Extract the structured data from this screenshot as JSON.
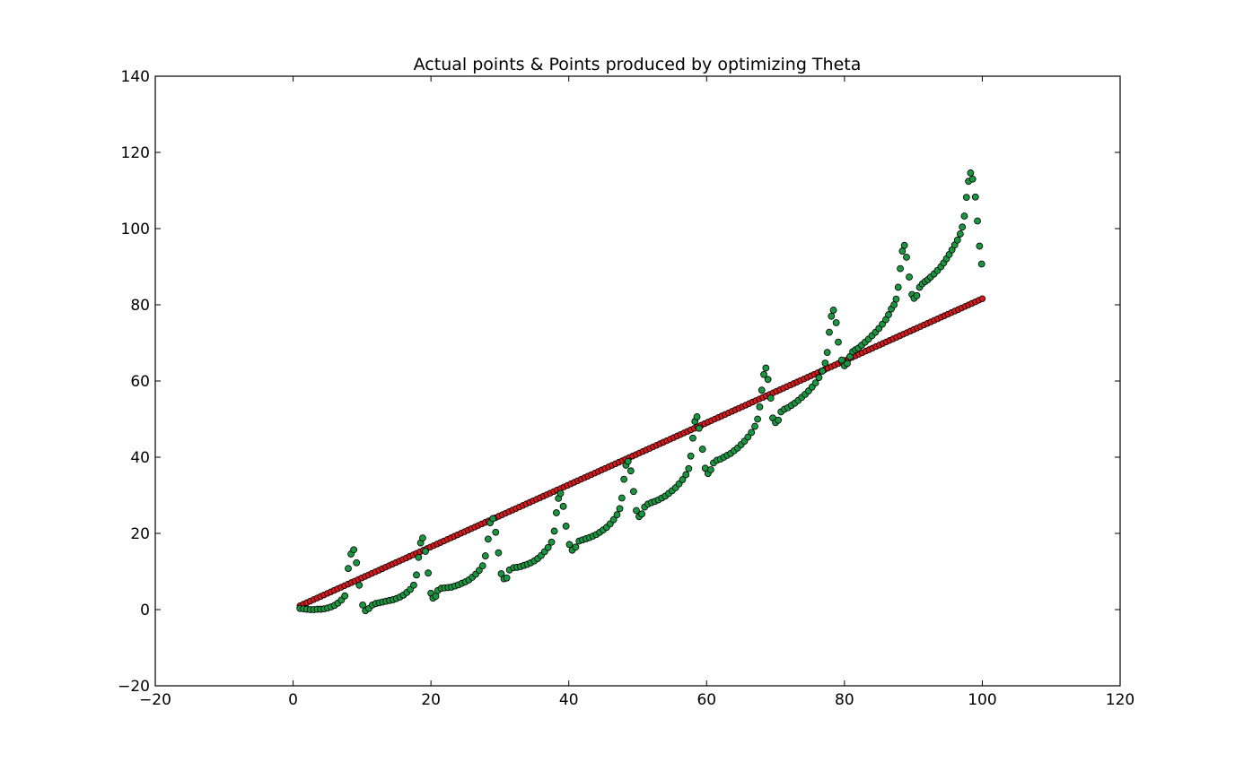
{
  "chart_data": {
    "type": "scatter",
    "title": "Actual points & Points produced by optimizing Theta",
    "xlabel": "",
    "ylabel": "",
    "xlim": [
      -20,
      120
    ],
    "ylim": [
      -20,
      140
    ],
    "xticks": [
      -20,
      0,
      20,
      40,
      60,
      80,
      100,
      120
    ],
    "yticks": [
      -20,
      0,
      20,
      40,
      60,
      80,
      100,
      120,
      140
    ],
    "grid": false,
    "series": [
      {
        "color": "#d7191c",
        "linear_fit": {
          "x_start": 1,
          "x_end": 100,
          "n_points": 200,
          "slope": 0.814,
          "intercept": 0.2
        }
      },
      {
        "color": "#1a9641",
        "points": [
          [
            1,
            0.3
          ],
          [
            1.5,
            0.2
          ],
          [
            2,
            0.1
          ],
          [
            2.5,
            0.0
          ],
          [
            3,
            0.0
          ],
          [
            3.5,
            0.1
          ],
          [
            4,
            0.1
          ],
          [
            4.5,
            0.2
          ],
          [
            5,
            0.4
          ],
          [
            5.5,
            0.7
          ],
          [
            6,
            1.1
          ],
          [
            6.5,
            1.7
          ],
          [
            7,
            2.5
          ],
          [
            7.5,
            3.6
          ],
          [
            8.0,
            10.8
          ],
          [
            8.4,
            14.6
          ],
          [
            8.8,
            15.7
          ],
          [
            9.2,
            12.3
          ],
          [
            9.6,
            6.4
          ],
          [
            10.1,
            1.2
          ],
          [
            10.5,
            -0.3
          ],
          [
            11,
            0.3
          ],
          [
            11.5,
            1.2
          ],
          [
            12,
            1.6
          ],
          [
            12.5,
            1.8
          ],
          [
            13,
            2.0
          ],
          [
            13.5,
            2.2
          ],
          [
            14,
            2.4
          ],
          [
            14.5,
            2.6
          ],
          [
            15,
            2.9
          ],
          [
            15.5,
            3.3
          ],
          [
            16,
            3.8
          ],
          [
            16.5,
            4.5
          ],
          [
            17,
            5.3
          ],
          [
            17.5,
            6.4
          ],
          [
            17.9,
            9.1
          ],
          [
            18.2,
            13.7
          ],
          [
            18.5,
            17.5
          ],
          [
            18.8,
            18.8
          ],
          [
            19.2,
            15.3
          ],
          [
            19.6,
            9.6
          ],
          [
            20,
            4.3
          ],
          [
            20.3,
            3.0
          ],
          [
            20.7,
            3.5
          ],
          [
            21,
            5.0
          ],
          [
            21.5,
            5.6
          ],
          [
            22,
            5.7
          ],
          [
            22.5,
            5.8
          ],
          [
            23,
            5.9
          ],
          [
            23.5,
            6.2
          ],
          [
            24,
            6.5
          ],
          [
            24.5,
            6.9
          ],
          [
            25,
            7.3
          ],
          [
            25.5,
            7.8
          ],
          [
            26,
            8.5
          ],
          [
            26.5,
            9.3
          ],
          [
            27,
            10.3
          ],
          [
            27.5,
            11.5
          ],
          [
            27.9,
            14.1
          ],
          [
            28.3,
            18.5
          ],
          [
            28.6,
            22.8
          ],
          [
            29,
            23.9
          ],
          [
            29.4,
            20.3
          ],
          [
            29.8,
            14.9
          ],
          [
            30.2,
            9.4
          ],
          [
            30.6,
            8.1
          ],
          [
            31,
            8.3
          ],
          [
            31.4,
            10.4
          ],
          [
            32,
            11.0
          ],
          [
            32.5,
            11.1
          ],
          [
            33,
            11.3
          ],
          [
            33.5,
            11.6
          ],
          [
            34,
            11.9
          ],
          [
            34.5,
            12.3
          ],
          [
            35,
            12.8
          ],
          [
            35.5,
            13.4
          ],
          [
            36,
            14.2
          ],
          [
            36.5,
            15.2
          ],
          [
            37,
            16.3
          ],
          [
            37.5,
            17.7
          ],
          [
            37.9,
            20.6
          ],
          [
            38.2,
            25.4
          ],
          [
            38.5,
            29.2
          ],
          [
            38.8,
            30.5
          ],
          [
            39.2,
            27.1
          ],
          [
            39.6,
            21.9
          ],
          [
            40.1,
            17.1
          ],
          [
            40.5,
            15.6
          ],
          [
            41,
            16.4
          ],
          [
            41.5,
            18.0
          ],
          [
            42,
            18.3
          ],
          [
            42.5,
            18.6
          ],
          [
            43,
            18.9
          ],
          [
            43.5,
            19.3
          ],
          [
            44,
            19.7
          ],
          [
            44.5,
            20.3
          ],
          [
            45,
            20.9
          ],
          [
            45.5,
            21.6
          ],
          [
            46,
            22.5
          ],
          [
            46.5,
            23.6
          ],
          [
            47,
            24.9
          ],
          [
            47.4,
            26.5
          ],
          [
            47.7,
            29.3
          ],
          [
            48,
            34.2
          ],
          [
            48.3,
            37.9
          ],
          [
            48.6,
            38.9
          ],
          [
            49,
            36.4
          ],
          [
            49.4,
            31.0
          ],
          [
            49.8,
            26.0
          ],
          [
            50.2,
            24.4
          ],
          [
            50.6,
            25.1
          ],
          [
            51,
            26.9
          ],
          [
            51.5,
            27.7
          ],
          [
            52,
            28.1
          ],
          [
            52.5,
            28.4
          ],
          [
            53,
            28.8
          ],
          [
            53.5,
            29.3
          ],
          [
            54,
            29.8
          ],
          [
            54.5,
            30.5
          ],
          [
            55,
            31.2
          ],
          [
            55.5,
            32.0
          ],
          [
            56,
            33.0
          ],
          [
            56.5,
            34.1
          ],
          [
            57,
            35.4
          ],
          [
            57.4,
            37.0
          ],
          [
            57.7,
            40.3
          ],
          [
            58,
            45.0
          ],
          [
            58.3,
            49.4
          ],
          [
            58.6,
            50.6
          ],
          [
            58.9,
            47.6
          ],
          [
            59.4,
            42.1
          ],
          [
            59.8,
            37.1
          ],
          [
            60.2,
            35.7
          ],
          [
            60.6,
            36.7
          ],
          [
            61,
            38.5
          ],
          [
            61.5,
            39.2
          ],
          [
            62,
            39.5
          ],
          [
            62.5,
            40.0
          ],
          [
            63,
            40.5
          ],
          [
            63.5,
            41.0
          ],
          [
            64,
            41.7
          ],
          [
            64.5,
            42.4
          ],
          [
            65,
            43.3
          ],
          [
            65.5,
            44.2
          ],
          [
            66,
            45.3
          ],
          [
            66.5,
            46.5
          ],
          [
            67,
            48.1
          ],
          [
            67.4,
            50.0
          ],
          [
            67.7,
            53.2
          ],
          [
            68,
            57.6
          ],
          [
            68.3,
            61.7
          ],
          [
            68.6,
            63.4
          ],
          [
            68.9,
            60.4
          ],
          [
            69.3,
            55.5
          ],
          [
            69.6,
            50.3
          ],
          [
            70,
            49.1
          ],
          [
            70.4,
            49.7
          ],
          [
            70.8,
            51.9
          ],
          [
            71.3,
            52.6
          ],
          [
            71.8,
            53.0
          ],
          [
            72.3,
            53.6
          ],
          [
            72.8,
            54.2
          ],
          [
            73.3,
            54.9
          ],
          [
            73.8,
            55.7
          ],
          [
            74.3,
            56.5
          ],
          [
            74.8,
            57.4
          ],
          [
            75.3,
            58.4
          ],
          [
            75.8,
            59.5
          ],
          [
            76.3,
            60.9
          ],
          [
            76.8,
            62.6
          ],
          [
            77.2,
            64.7
          ],
          [
            77.5,
            67.5
          ],
          [
            77.8,
            72.8
          ],
          [
            78.1,
            77.0
          ],
          [
            78.4,
            78.6
          ],
          [
            78.8,
            75.3
          ],
          [
            79.1,
            70.2
          ],
          [
            79.6,
            65.5
          ],
          [
            80,
            64.0
          ],
          [
            80.4,
            64.6
          ],
          [
            80.8,
            66.4
          ],
          [
            81.2,
            67.7
          ],
          [
            81.6,
            68.2
          ],
          [
            82,
            68.6
          ],
          [
            82.5,
            69.4
          ],
          [
            83,
            70.2
          ],
          [
            83.5,
            71.0
          ],
          [
            84,
            71.9
          ],
          [
            84.5,
            72.8
          ],
          [
            85,
            73.8
          ],
          [
            85.5,
            74.9
          ],
          [
            86,
            76.1
          ],
          [
            86.4,
            77.4
          ],
          [
            86.8,
            78.9
          ],
          [
            87.2,
            80.0
          ],
          [
            87.5,
            81.5
          ],
          [
            87.8,
            84.6
          ],
          [
            88.1,
            89.5
          ],
          [
            88.4,
            94.1
          ],
          [
            88.7,
            95.6
          ],
          [
            89,
            92.5
          ],
          [
            89.4,
            87.3
          ],
          [
            89.8,
            82.7
          ],
          [
            90.1,
            81.7
          ],
          [
            90.5,
            82.4
          ],
          [
            90.9,
            84.6
          ],
          [
            91.3,
            85.5
          ],
          [
            91.7,
            86.1
          ],
          [
            92.1,
            86.6
          ],
          [
            92.5,
            87.3
          ],
          [
            93,
            88.1
          ],
          [
            93.5,
            89.0
          ],
          [
            94,
            90.0
          ],
          [
            94.4,
            91.0
          ],
          [
            94.8,
            92.1
          ],
          [
            95.2,
            93.2
          ],
          [
            95.6,
            94.4
          ],
          [
            96,
            95.7
          ],
          [
            96.4,
            97.0
          ],
          [
            96.8,
            98.6
          ],
          [
            97.1,
            100.4
          ],
          [
            97.4,
            103.3
          ],
          [
            97.7,
            108.2
          ],
          [
            98,
            112.4
          ],
          [
            98.3,
            114.6
          ],
          [
            98.6,
            113.0
          ],
          [
            99,
            108.3
          ],
          [
            99.3,
            102.0
          ],
          [
            99.6,
            95.4
          ],
          [
            99.9,
            90.7
          ]
        ]
      }
    ]
  }
}
